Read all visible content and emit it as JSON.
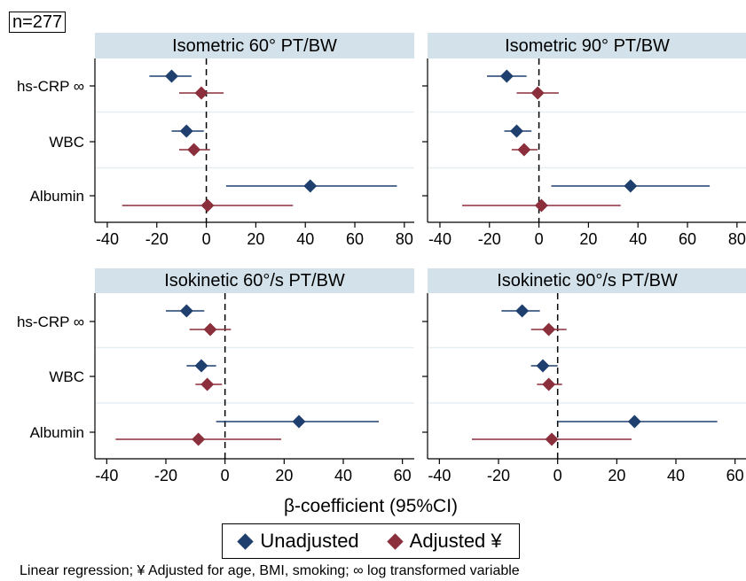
{
  "n_label": "n=277",
  "xlabel": "β-coefficient (95%CI)",
  "legend": {
    "unadjusted": "Unadjusted",
    "adjusted": "Adjusted ¥"
  },
  "footnote": "Linear regression; ¥ Adjusted for age, BMI, smoking; ∞ log transformed variable",
  "colors": {
    "unadjusted": "#1f3f6e",
    "adjusted": "#8b2f3c",
    "header": "#d3e2ea"
  },
  "chart_data": [
    {
      "type": "scatter",
      "title": "Isometric 60° PT/BW",
      "categories": [
        "hs-CRP ∞",
        "WBC",
        "Albumin"
      ],
      "xlim": [
        -45,
        84
      ],
      "xticks": [
        -40,
        -20,
        0,
        20,
        40,
        60,
        80
      ],
      "series": [
        {
          "name": "Unadjusted",
          "values": [
            -14,
            -8,
            42
          ],
          "lower": [
            -23,
            -14,
            8
          ],
          "upper": [
            -6,
            -1,
            77
          ]
        },
        {
          "name": "Adjusted ¥",
          "values": [
            -2,
            -5,
            0.5
          ],
          "lower": [
            -11,
            -11,
            -34
          ],
          "upper": [
            7,
            1.5,
            35
          ]
        }
      ]
    },
    {
      "type": "scatter",
      "title": "Isometric 90° PT/BW",
      "categories": [
        "hs-CRP ∞",
        "WBC",
        "Albumin"
      ],
      "xlim": [
        -45,
        84
      ],
      "xticks": [
        -40,
        -20,
        0,
        20,
        40,
        60,
        80
      ],
      "series": [
        {
          "name": "Unadjusted",
          "values": [
            -13,
            -9,
            37
          ],
          "lower": [
            -21,
            -14,
            5
          ],
          "upper": [
            -5,
            -3,
            69
          ]
        },
        {
          "name": "Adjusted ¥",
          "values": [
            -0.5,
            -6,
            1
          ],
          "lower": [
            -9,
            -11,
            -31
          ],
          "upper": [
            8,
            -0.5,
            33
          ]
        }
      ]
    },
    {
      "type": "scatter",
      "title": "Isokinetic 60°/s PT/BW",
      "categories": [
        "hs-CRP ∞",
        "WBC",
        "Albumin"
      ],
      "xlim": [
        -44,
        64
      ],
      "xticks": [
        -40,
        -20,
        0,
        20,
        40,
        60
      ],
      "series": [
        {
          "name": "Unadjusted",
          "values": [
            -13,
            -8,
            25
          ],
          "lower": [
            -20,
            -13,
            -3
          ],
          "upper": [
            -7,
            -3,
            52
          ]
        },
        {
          "name": "Adjusted ¥",
          "values": [
            -5,
            -6,
            -9
          ],
          "lower": [
            -12,
            -10,
            -37
          ],
          "upper": [
            2,
            -1,
            19
          ]
        }
      ]
    },
    {
      "type": "scatter",
      "title": "Isokinetic 90°/s PT/BW",
      "categories": [
        "hs-CRP ∞",
        "WBC",
        "Albumin"
      ],
      "xlim": [
        -44,
        64
      ],
      "xticks": [
        -40,
        -20,
        0,
        20,
        40,
        60
      ],
      "series": [
        {
          "name": "Unadjusted",
          "values": [
            -12,
            -5,
            26
          ],
          "lower": [
            -19,
            -9,
            0
          ],
          "upper": [
            -6,
            0,
            54
          ]
        },
        {
          "name": "Adjusted ¥",
          "values": [
            -3,
            -3,
            -2
          ],
          "lower": [
            -9,
            -7,
            -29
          ],
          "upper": [
            3,
            1.5,
            25
          ]
        }
      ]
    }
  ]
}
